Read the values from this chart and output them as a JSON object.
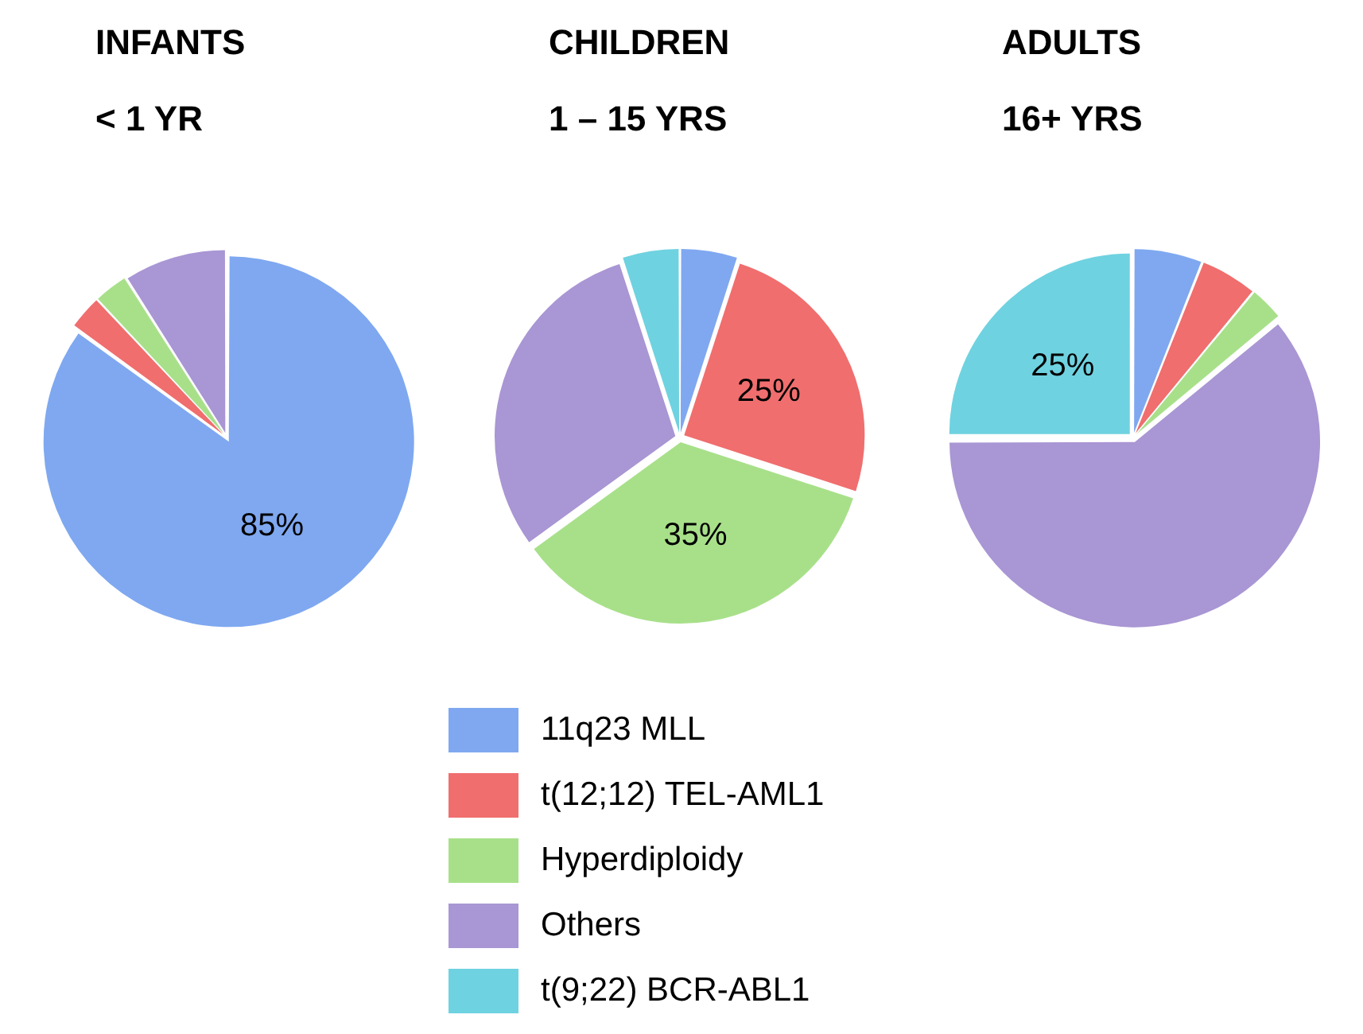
{
  "chart_data": [
    {
      "type": "pie",
      "title": "INFANTS",
      "subtitle": "< 1 YR",
      "categories": [
        null,
        null,
        null,
        null
      ],
      "values": [
        85,
        3,
        3,
        9
      ],
      "colors": [
        "#7fa8f0",
        "#f06e6e",
        "#a8e08a",
        "#a996d4"
      ],
      "value_labels": [
        "85%",
        null,
        null,
        null
      ],
      "legend": false
    },
    {
      "type": "pie",
      "title": "CHILDREN",
      "subtitle": "1 – 15 YRS",
      "categories": [
        "11q23 MLL",
        "t(12;12) TEL-AML1",
        "Hyperdiploidy",
        "Others",
        "t(9;22) BCR-ABL1"
      ],
      "values": [
        5,
        25,
        35,
        30,
        5
      ],
      "colors": [
        "#7fa8f0",
        "#f06e6e",
        "#a8e08a",
        "#a996d4",
        "#6fd2e0"
      ],
      "value_labels": [
        null,
        "25%",
        "35%",
        null,
        null
      ],
      "legend": "bottom"
    },
    {
      "type": "pie",
      "title": "ADULTS",
      "subtitle": "16+ YRS",
      "categories": [
        null,
        null,
        null,
        null,
        null
      ],
      "values": [
        6,
        5,
        3,
        61,
        25
      ],
      "colors": [
        "#7fa8f0",
        "#f06e6e",
        "#a8e08a",
        "#a996d4",
        "#6fd2e0"
      ],
      "value_labels": [
        null,
        null,
        null,
        null,
        "25%"
      ],
      "legend": false
    }
  ]
}
